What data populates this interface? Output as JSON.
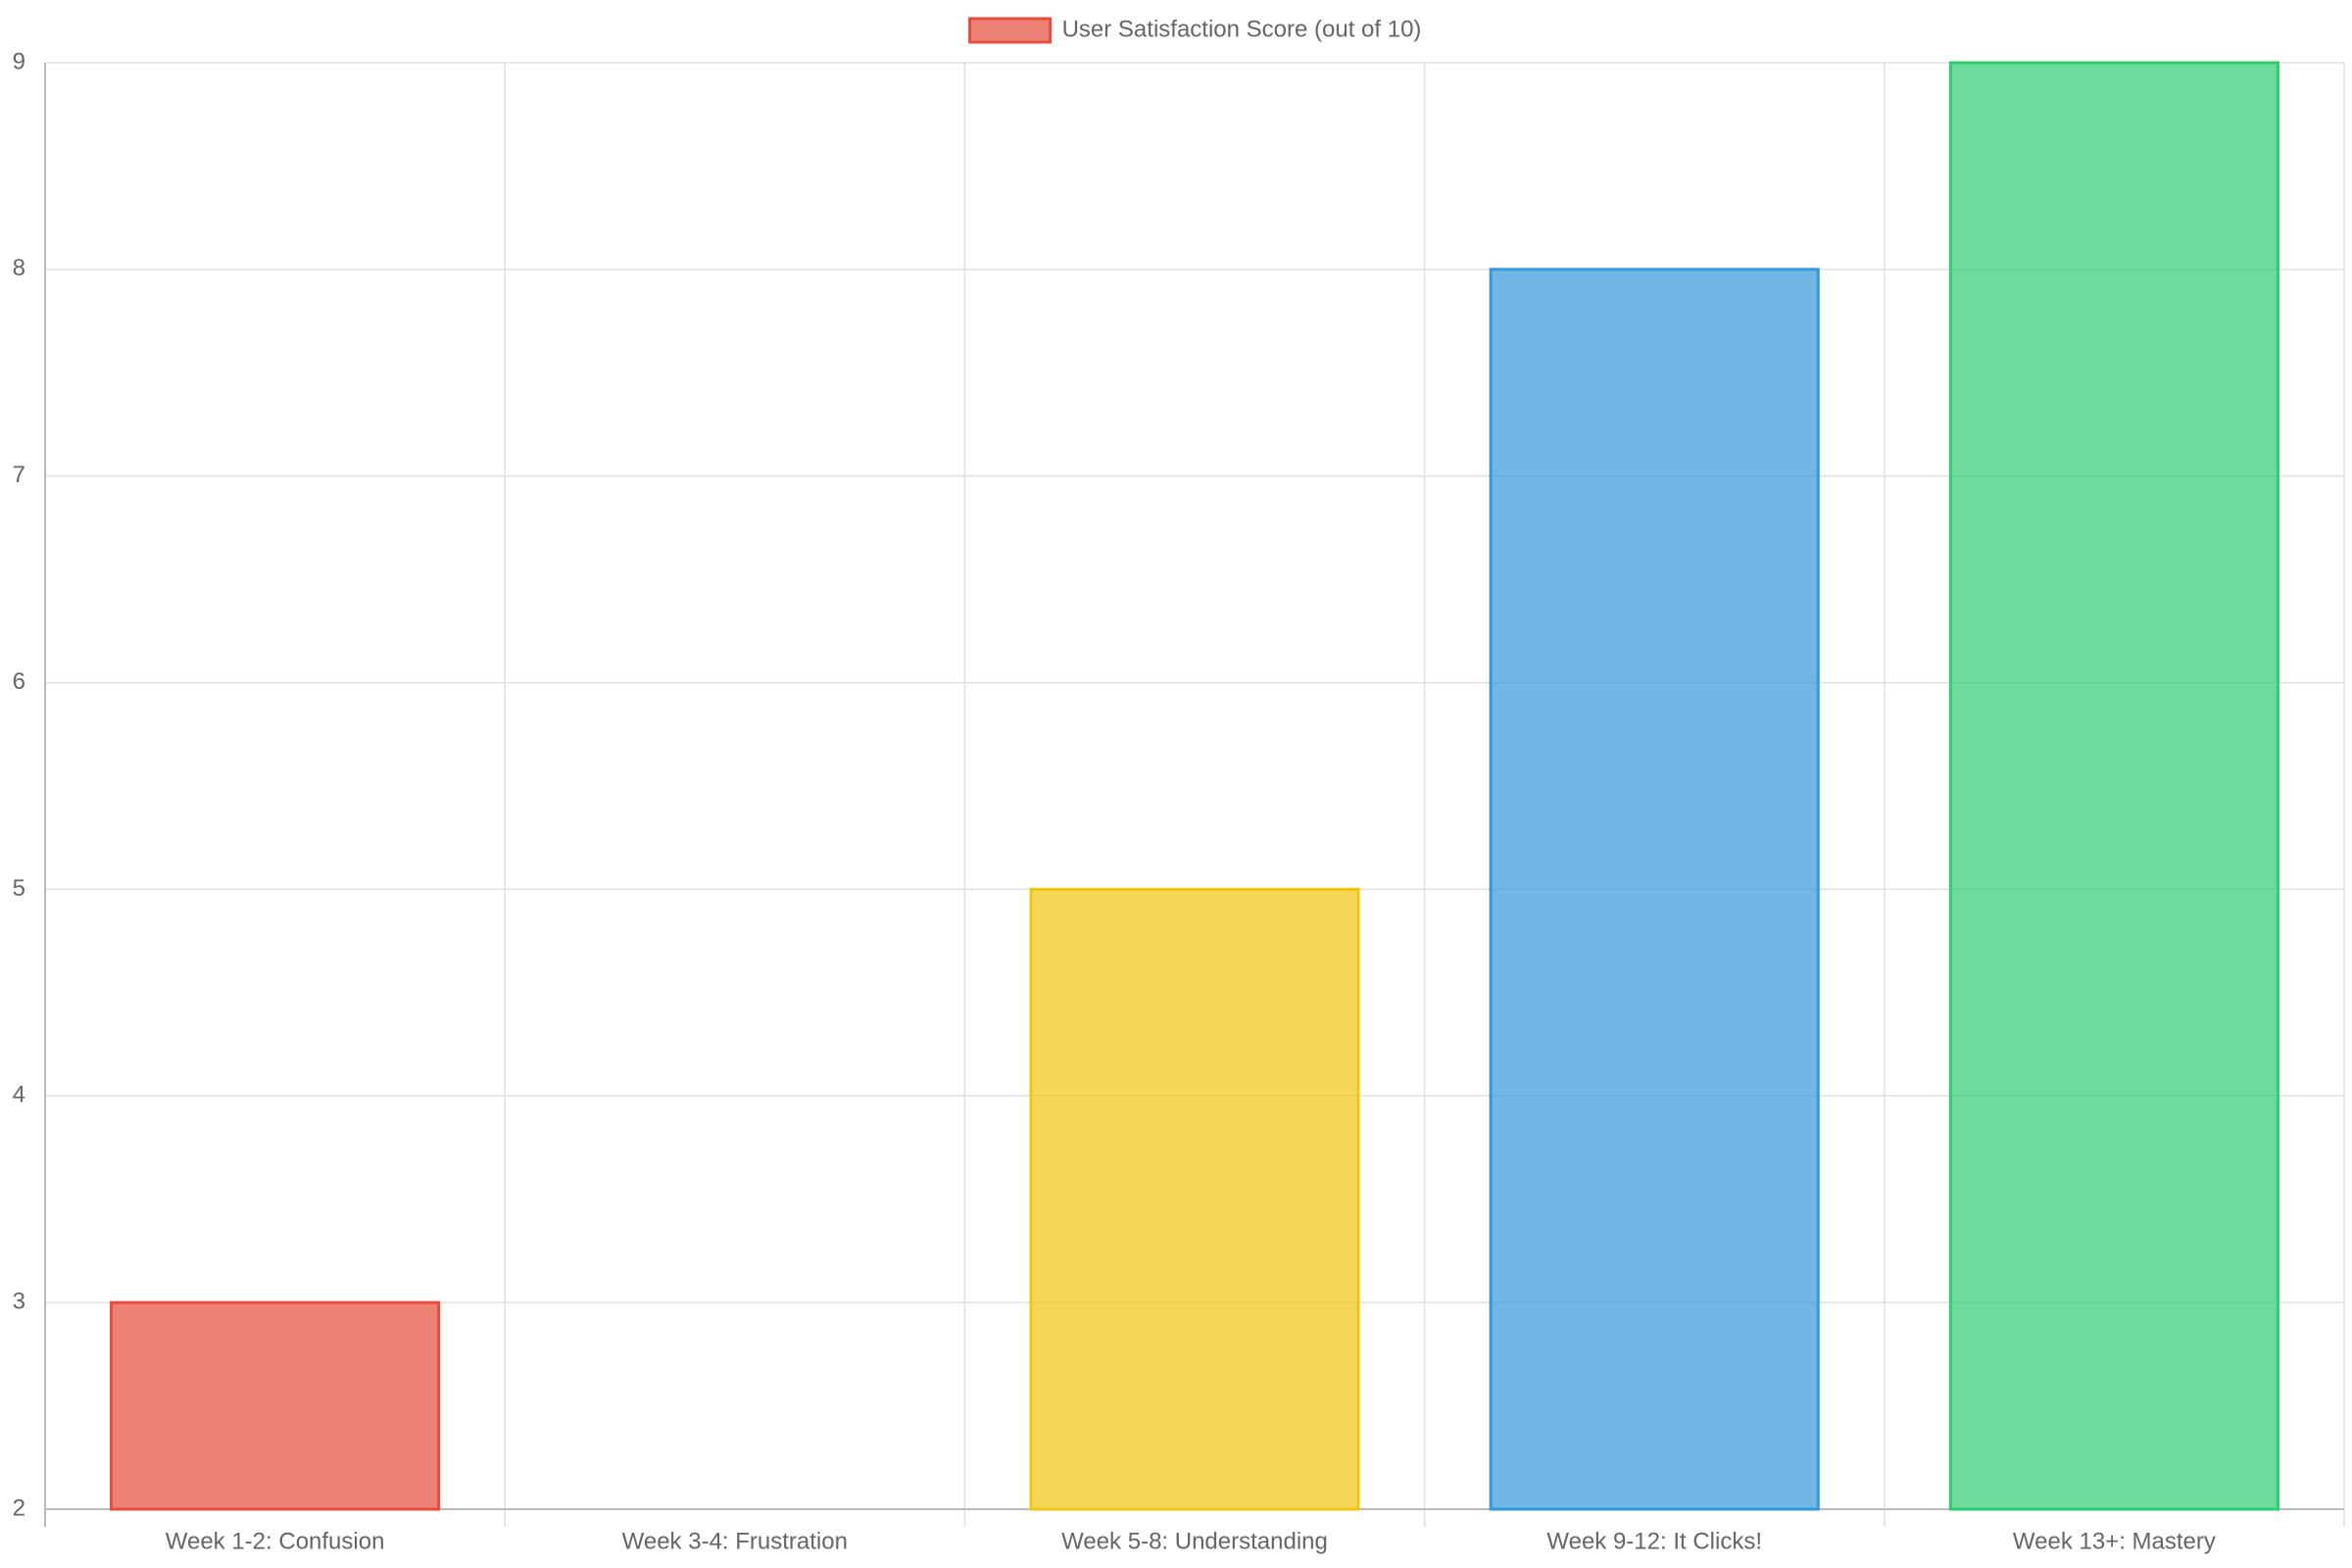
{
  "chart_data": {
    "type": "bar",
    "categories": [
      "Week 1-2: Confusion",
      "Week 3-4: Frustration",
      "Week 5-8: Understanding",
      "Week 9-12: It Clicks!",
      "Week 13+: Mastery"
    ],
    "series": [
      {
        "name": "User Satisfaction Score (out of 10)",
        "colors": [
          "#e74c3c",
          "#e67e22",
          "#f1c40f",
          "#3498db",
          "#2ecc71"
        ],
        "values": [
          3,
          2,
          5,
          8,
          9
        ]
      }
    ],
    "ylim": [
      2,
      9
    ],
    "yticks": [
      2,
      3,
      4,
      5,
      6,
      7,
      8,
      9
    ],
    "grid": true,
    "legend": "top"
  }
}
